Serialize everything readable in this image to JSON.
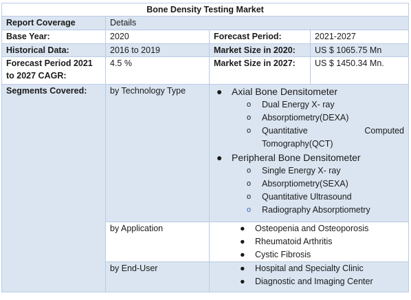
{
  "title": "Bone Density Testing Market",
  "rows": {
    "report_coverage": {
      "label": "Report Coverage",
      "value": "Details"
    },
    "base_year": {
      "label": "Base Year:",
      "value": "2020",
      "label2": "Forecast Period:",
      "value2": "2021-2027"
    },
    "historical": {
      "label": "Historical Data:",
      "value": "2016 to 2019",
      "label2": "Market Size in 2020:",
      "value2": "US $ 1065.75 Mn"
    },
    "forecast": {
      "label": "Forecast Period 2021 to 2027 CAGR:",
      "value": "4.5 %",
      "label2": "Market Size in 2027:",
      "value2": "US $ 1450.34 Mn."
    }
  },
  "segments": {
    "label": "Segments Covered:",
    "technology": {
      "label": "by Technology Type",
      "groups": [
        {
          "name": "Axial Bone Densitometer",
          "items": [
            "Dual Energy X- ray",
            "Absorptiometry(DEXA)",
            "Quantitative",
            "Computed",
            "Tomography(QCT)"
          ]
        },
        {
          "name": "Peripheral Bone Densitometer",
          "items": [
            "Single Energy X- ray",
            "Absorptiometry(SEXA)",
            "Quantitative Ultrasound",
            "Radiography Absorptiometry"
          ]
        }
      ]
    },
    "application": {
      "label": "by Application",
      "items": [
        "Osteopenia and Osteoporosis",
        "Rheumatoid  Arthritis",
        "Cystic Fibrosis"
      ]
    },
    "end_user": {
      "label": "by End-User",
      "items": [
        "Hospital and Specialty Clinic",
        "Diagnostic and Imaging Center"
      ]
    }
  }
}
